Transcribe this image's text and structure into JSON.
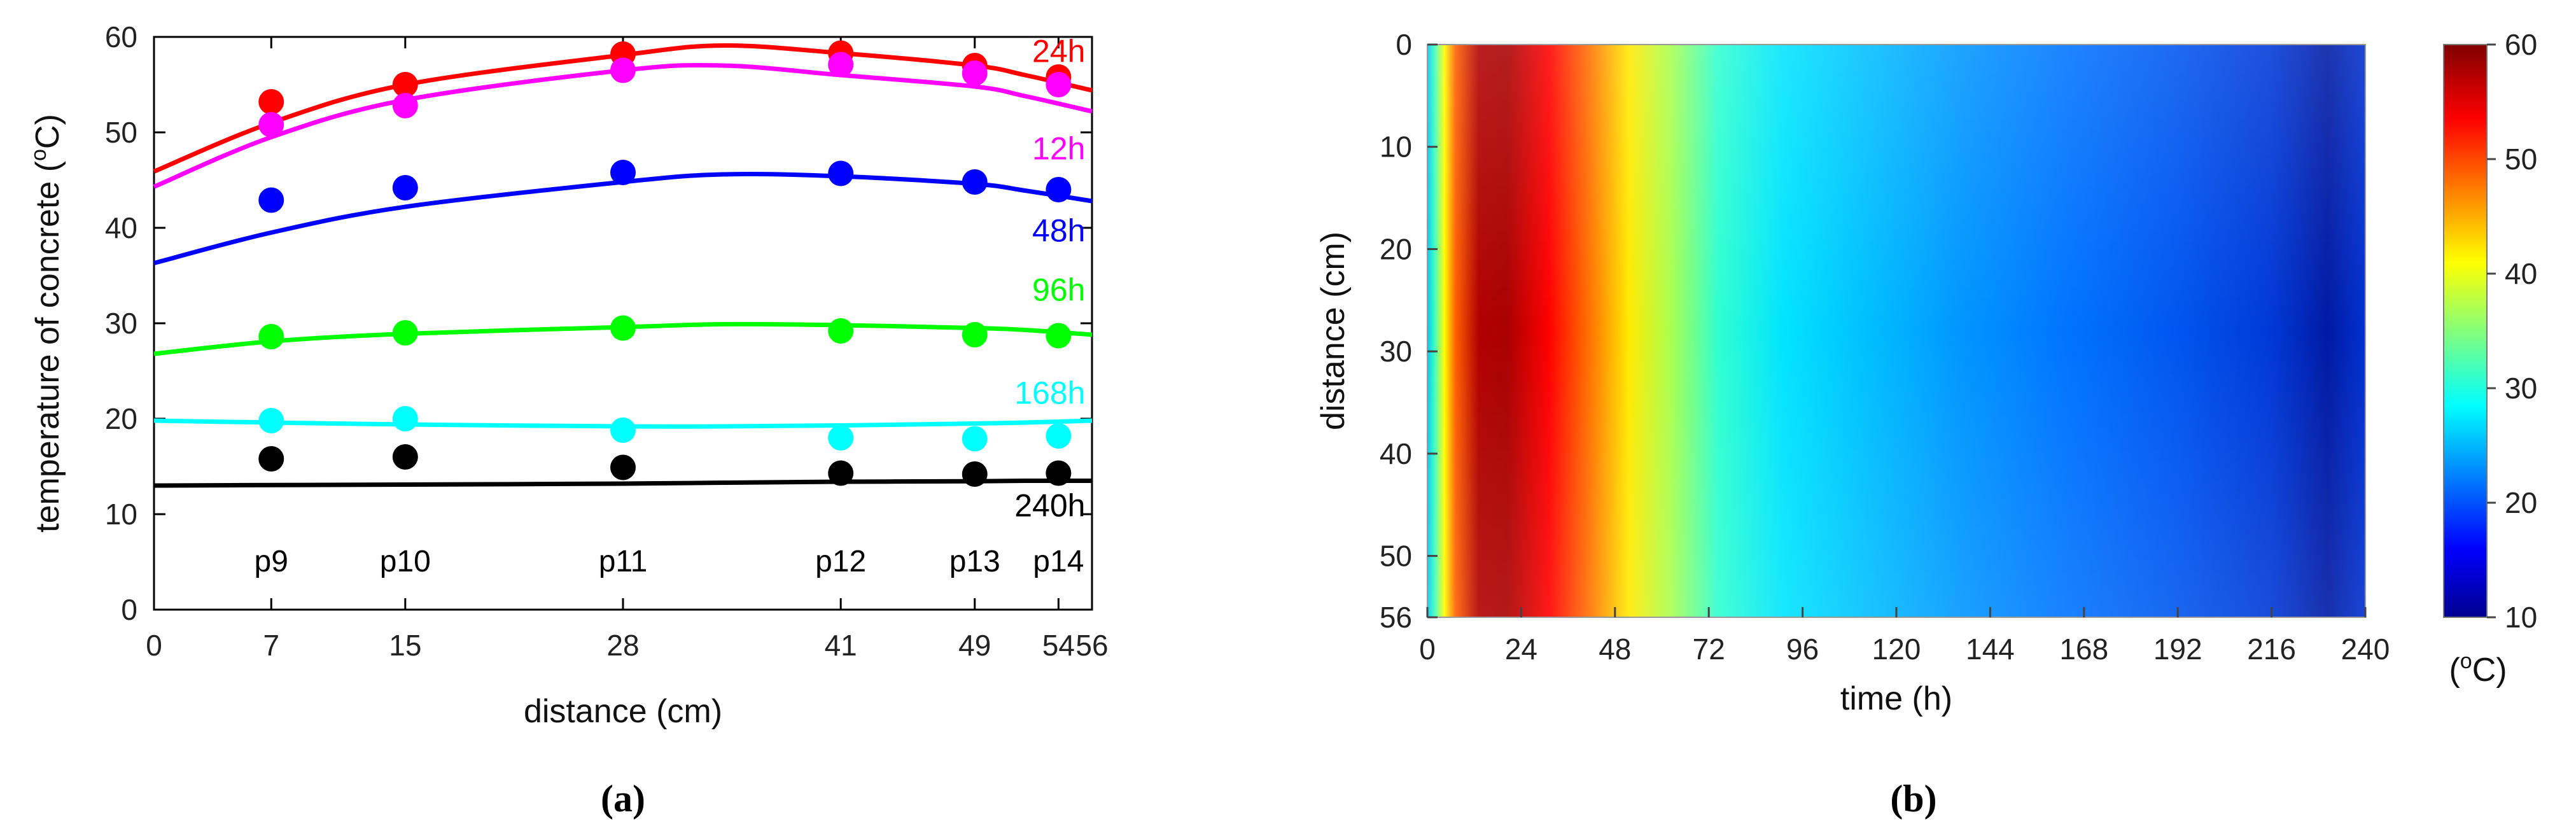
{
  "chart_data": [
    {
      "type": "scatter",
      "panel": "(a)",
      "xlabel": "distance (cm)",
      "ylabel_main": "temperature of concrete (",
      "ylabel_sup": "o",
      "ylabel_end": "C)",
      "xlim": [
        0,
        56
      ],
      "ylim": [
        0,
        60
      ],
      "xticks": [
        0,
        7,
        15,
        28,
        41,
        49,
        54,
        56
      ],
      "yticks": [
        0,
        10,
        20,
        30,
        40,
        50,
        60
      ],
      "points": [
        {
          "label": "p9",
          "x": 7
        },
        {
          "label": "p10",
          "x": 15
        },
        {
          "label": "p11",
          "x": 28
        },
        {
          "label": "p12",
          "x": 41
        },
        {
          "label": "p13",
          "x": 49
        },
        {
          "label": "p14",
          "x": 54
        }
      ],
      "series": [
        {
          "name": "24h",
          "color": "#ff0000",
          "values": [
            53.2,
            55.0,
            58.2,
            58.3,
            57.0,
            55.8
          ],
          "fit": [
            45.9,
            51.0,
            55.0,
            58.1,
            59.1,
            58.3,
            57.0,
            56.0,
            54.4
          ],
          "label_y": 58.5
        },
        {
          "name": "12h",
          "color": "#ff00ff",
          "values": [
            50.8,
            52.8,
            56.5,
            57.1,
            56.2,
            55.0
          ],
          "fit": [
            44.3,
            49.5,
            53.4,
            56.5,
            57.0,
            56.0,
            54.8,
            53.8,
            52.2
          ],
          "label_y": 48.3
        },
        {
          "name": "48h",
          "color": "#0000ff",
          "values": [
            42.9,
            44.2,
            45.8,
            45.7,
            44.8,
            44.0
          ],
          "fit": [
            36.3,
            39.5,
            42.2,
            44.8,
            45.6,
            45.4,
            44.6,
            43.9,
            42.8
          ],
          "label_y": 39.7
        },
        {
          "name": "96h",
          "color": "#00ff00",
          "values": [
            28.6,
            29.0,
            29.5,
            29.2,
            28.8,
            28.7
          ],
          "fit": [
            26.8,
            28.1,
            28.9,
            29.6,
            29.9,
            29.8,
            29.5,
            29.3,
            28.8
          ],
          "label_y": 33.5
        },
        {
          "name": "168h",
          "color": "#00ffff",
          "values": [
            19.8,
            20.0,
            18.8,
            18.0,
            17.9,
            18.2
          ],
          "fit": [
            19.8,
            19.6,
            19.4,
            19.2,
            19.2,
            19.3,
            19.5,
            19.6,
            19.8
          ],
          "label_y": 22.7
        },
        {
          "name": "240h",
          "color": "#000000",
          "values": [
            15.8,
            16.0,
            14.9,
            14.3,
            14.2,
            14.3
          ],
          "fit": [
            13.0,
            13.05,
            13.1,
            13.2,
            13.3,
            13.4,
            13.45,
            13.5,
            13.5
          ],
          "label_y": 10.9
        }
      ],
      "fit_x": [
        0,
        7,
        15,
        28,
        34,
        41,
        49,
        52,
        56
      ]
    },
    {
      "type": "heatmap",
      "panel": "(b)",
      "xlabel": "time (h)",
      "ylabel": "distance (cm)",
      "xlim": [
        0,
        240
      ],
      "ylim": [
        0,
        56
      ],
      "xticks": [
        0,
        24,
        48,
        72,
        96,
        120,
        144,
        168,
        192,
        216,
        240
      ],
      "yticks": [
        0,
        10,
        20,
        30,
        40,
        50,
        56
      ],
      "colorbar": {
        "min": 10,
        "max": 60,
        "ticks": [
          10,
          20,
          30,
          40,
          50,
          60
        ],
        "unit_main": "(",
        "unit_sup": "o",
        "unit_end": "C)"
      }
    }
  ]
}
